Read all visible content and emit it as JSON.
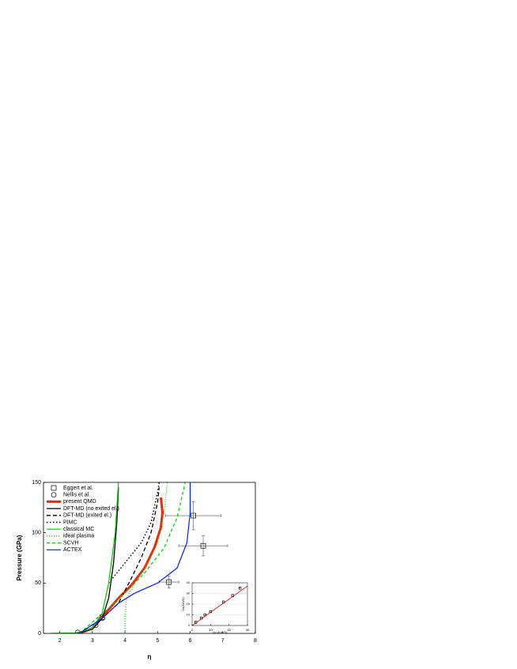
{
  "chart_data": [
    {
      "type": "line",
      "xlabel": "η",
      "ylabel": "Pressure (GPa)",
      "xlim": [
        1.5,
        8
      ],
      "ylim": [
        0,
        150
      ],
      "xticks": [
        2,
        3,
        4,
        5,
        6,
        7,
        8
      ],
      "yticks": [
        0,
        50,
        100,
        150
      ],
      "series": [
        {
          "name": "Eggert et al.",
          "color": "#000000",
          "marker": "square",
          "x": [
            5.35,
            6.4,
            6.1,
            3.3
          ],
          "values": [
            51,
            87,
            117,
            16
          ],
          "xerr": [
            0.3,
            0.75,
            0.85,
            0
          ],
          "yerr": [
            6,
            10,
            14,
            0
          ]
        },
        {
          "name": "Nellis et al.",
          "color": "#000000",
          "marker": "circle",
          "x": [
            2.55,
            3.1,
            3.3
          ],
          "values": [
            1,
            8,
            15
          ]
        },
        {
          "name": "present QMD",
          "color": "#ff2200",
          "width": 3,
          "x": [
            2.6,
            3,
            3.4,
            3.8,
            4.2,
            4.6,
            4.9,
            5.1,
            5.15,
            5.1
          ],
          "values": [
            0,
            5,
            20,
            35,
            48,
            65,
            85,
            105,
            120,
            135
          ]
        },
        {
          "name": "DFT-MD (no exited el.)",
          "color": "#000000",
          "width": 1.3,
          "x": [
            2.5,
            3,
            3.3,
            3.5,
            3.65,
            3.75,
            3.8
          ],
          "values": [
            0,
            4,
            15,
            35,
            70,
            110,
            145
          ]
        },
        {
          "name": "DFT-MD (exited el.)",
          "color": "#000000",
          "width": 1.3,
          "dash": "5 3",
          "x": [
            2.6,
            3.3,
            3.8,
            4.2,
            4.5,
            4.8,
            5,
            5.05
          ],
          "values": [
            0,
            15,
            30,
            55,
            75,
            100,
            130,
            145
          ]
        },
        {
          "name": "PIMC",
          "color": "#000000",
          "width": 1.5,
          "dash": "1.5 2.5",
          "x": [
            3.5,
            4,
            4.5,
            4.8,
            5,
            5.05
          ],
          "values": [
            50,
            70,
            90,
            110,
            140,
            150
          ]
        },
        {
          "name": "classical MC",
          "color": "#00cc00",
          "width": 1.2,
          "x": [
            1.7,
            2.5,
            3,
            3.3,
            3.5,
            3.7,
            3.8
          ],
          "values": [
            0,
            0.5,
            5,
            20,
            50,
            100,
            150
          ]
        },
        {
          "name": "ideal plasma",
          "color": "#00cc00",
          "width": 1.2,
          "dash": "1 2",
          "x": [
            4,
            4,
            4.05,
            4.3,
            4.7,
            5,
            5.2,
            5.3
          ],
          "values": [
            0,
            15,
            35,
            50,
            70,
            90,
            120,
            150
          ]
        },
        {
          "name": "SCVH",
          "color": "#00cc00",
          "width": 1.2,
          "dash": "4 3",
          "x": [
            2.6,
            3.5,
            4,
            4.6,
            5.2,
            5.6,
            5.85
          ],
          "values": [
            0,
            25,
            40,
            60,
            85,
            115,
            150
          ]
        },
        {
          "name": "ACTEX",
          "color": "#0022ff",
          "width": 1.2,
          "x": [
            2.6,
            3.3,
            3.8,
            4.3,
            5,
            5.6,
            5.9,
            6,
            6
          ],
          "values": [
            0,
            15,
            30,
            40,
            50,
            65,
            90,
            120,
            150
          ]
        }
      ]
    },
    {
      "type": "line",
      "xlabel": "Up (Km/S)",
      "ylabel": "Us(Km/S)",
      "xlim": [
        0,
        30
      ],
      "ylim": [
        0,
        40
      ],
      "xticks": [
        0,
        10,
        20,
        30
      ],
      "yticks": [
        0,
        10,
        20,
        30,
        40
      ],
      "series": [
        {
          "color": "#000000",
          "marker": "square",
          "x": [
            2,
            5,
            7,
            10,
            17,
            22,
            26
          ],
          "values": [
            3,
            7,
            10,
            13,
            22,
            28,
            35
          ]
        },
        {
          "color": "#cc0000",
          "width": 0.8,
          "x": [
            0,
            30
          ],
          "values": [
            0,
            37
          ]
        }
      ]
    }
  ]
}
